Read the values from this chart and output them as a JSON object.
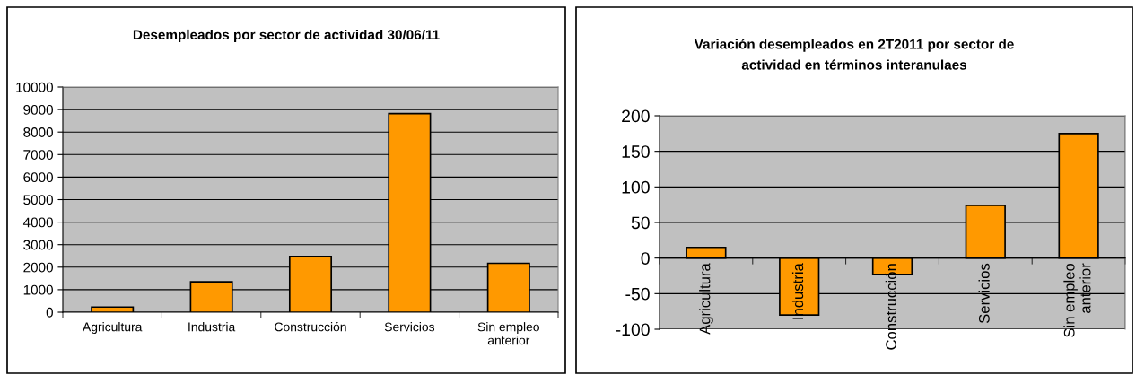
{
  "chart_data": [
    {
      "type": "bar",
      "title": "Desempleados por sector de actividad 30/06/11",
      "categories": [
        "Agricultura",
        "Industria",
        "Construcción",
        "Servicios",
        "Sin empleo anterior"
      ],
      "values": [
        230,
        1350,
        2480,
        8820,
        2170
      ],
      "color": "#ff9900",
      "ylim": [
        0,
        10000
      ],
      "yticks": [
        0,
        1000,
        2000,
        3000,
        4000,
        5000,
        6000,
        7000,
        8000,
        9000,
        10000
      ],
      "grid": "y"
    },
    {
      "type": "bar",
      "title": "Variación desempleados en 2T2011 por sector de actividad en términos interanulaes",
      "categories": [
        "Agricultura",
        "Industria",
        "Construcción",
        "Servicios",
        "Sin empleo anterior"
      ],
      "values": [
        15,
        -80,
        -23,
        74,
        175
      ],
      "color": "#ff9900",
      "ylim": [
        -100,
        200
      ],
      "yticks": [
        -100,
        -50,
        0,
        50,
        100,
        150,
        200
      ],
      "grid": "y"
    }
  ]
}
